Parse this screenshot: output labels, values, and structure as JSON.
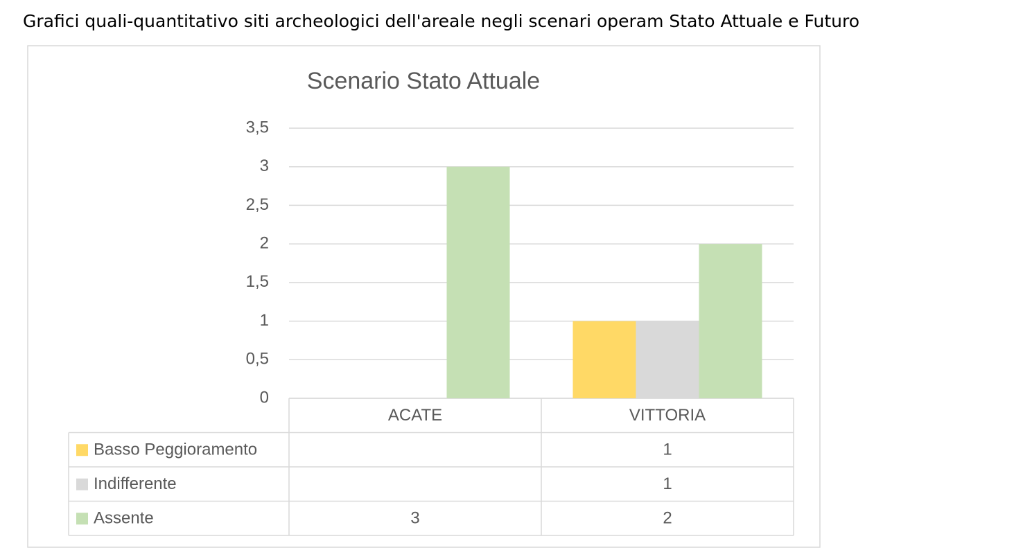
{
  "heading": "Grafici quali-quantitativo siti archeologici dell'areale negli scenari operam Stato Attuale e Futuro",
  "chart_data": {
    "type": "bar",
    "title": "Scenario Stato Attuale",
    "categories": [
      "ACATE",
      "VITTORIA"
    ],
    "series": [
      {
        "name": "Basso Peggioramento",
        "color": "#ffd966",
        "values": [
          null,
          1
        ]
      },
      {
        "name": "Indifferente",
        "color": "#d9d9d9",
        "values": [
          null,
          1
        ]
      },
      {
        "name": "Assente",
        "color": "#c5e0b4",
        "values": [
          3,
          2
        ]
      }
    ],
    "ylim": [
      0,
      3.5
    ],
    "yticks": [
      0,
      {
        "value": 0.5,
        "label": "0,5"
      },
      1,
      {
        "value": 1.5,
        "label": "1,5"
      },
      2,
      {
        "value": 2.5,
        "label": "2,5"
      },
      3,
      {
        "value": 3.5,
        "label": "3,5"
      }
    ],
    "grid": true,
    "legend": "data-table"
  }
}
